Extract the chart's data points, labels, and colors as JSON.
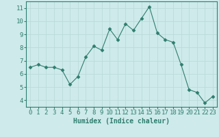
{
  "x": [
    0,
    1,
    2,
    3,
    4,
    5,
    6,
    7,
    8,
    9,
    10,
    11,
    12,
    13,
    14,
    15,
    16,
    17,
    18,
    19,
    20,
    21,
    22,
    23
  ],
  "y": [
    6.5,
    6.7,
    6.5,
    6.5,
    6.3,
    5.2,
    5.8,
    7.3,
    8.1,
    7.8,
    9.4,
    8.6,
    9.8,
    9.3,
    10.2,
    11.1,
    9.1,
    8.6,
    8.4,
    6.7,
    4.8,
    4.6,
    3.8,
    4.3
  ],
  "line_color": "#2e7d6e",
  "marker": "D",
  "marker_size": 2.5,
  "bg_color": "#ceeaea",
  "grid_color": "#b8d8d8",
  "xlabel": "Humidex (Indice chaleur)",
  "ylim": [
    3.5,
    11.5
  ],
  "xlim": [
    -0.5,
    23.5
  ],
  "yticks": [
    4,
    5,
    6,
    7,
    8,
    9,
    10,
    11
  ],
  "xticks": [
    0,
    1,
    2,
    3,
    4,
    5,
    6,
    7,
    8,
    9,
    10,
    11,
    12,
    13,
    14,
    15,
    16,
    17,
    18,
    19,
    20,
    21,
    22,
    23
  ],
  "tick_color": "#2e7d6e",
  "label_fontsize": 7,
  "tick_fontsize": 6.5
}
